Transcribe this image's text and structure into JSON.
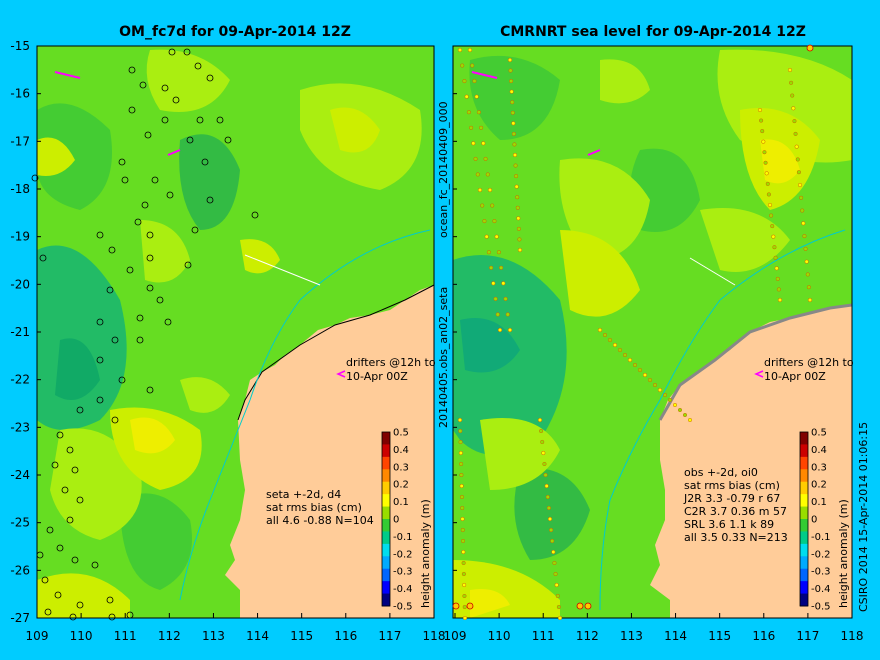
{
  "titles": {
    "left": "OM_fc7d for 09-Apr-2014 12Z",
    "right": "CMRNRT sea level  for 09-Apr-2014 12Z"
  },
  "axes": {
    "lat_ticks": [
      "-15",
      "-16",
      "-17",
      "-18",
      "-19",
      "-20",
      "-21",
      "-22",
      "-23",
      "-24",
      "-25",
      "-26",
      "-27"
    ],
    "lon_ticks": [
      "109",
      "110",
      "111",
      "112",
      "113",
      "114",
      "115",
      "116",
      "117",
      "118"
    ]
  },
  "side_labels": {
    "middle_top": "ocean_fc_20140409_000",
    "middle_bottom": "20140405.obs_an02_seta",
    "right_copyright": "CSIRO 2014   15-Apr-2014 01:06:15"
  },
  "drifters_note": {
    "line1": "drifters @12h to",
    "line2": "10-Apr 00Z"
  },
  "left_stats": {
    "line1": "seta +-2d, d4",
    "line2": "sat rms bias (cm)",
    "line3": "all 4.6 -0.88 N=104"
  },
  "right_stats": {
    "line1": "obs +-2d, oi0",
    "line2": "sat rms bias (cm)",
    "rows": [
      "J2R   3.3 -0.79 r 67",
      "C2R   3.7 0.36 m 57",
      "SRL   3.6 1.1 k 89",
      "all   3.5 0.33 N=213"
    ]
  },
  "colorbar": {
    "label": "height anomaly (m)",
    "ticks": [
      "0.5",
      "0.4",
      "0.3",
      "0.2",
      "0.1",
      "0",
      "-0.1",
      "-0.2",
      "-0.3",
      "-0.4",
      "-0.5"
    ],
    "colors": [
      "#000080",
      "#0000ff",
      "#0066ff",
      "#00aaff",
      "#00ddee",
      "#00cc88",
      "#33cc33",
      "#99dd00",
      "#ffff00",
      "#ffcc00",
      "#ff8800",
      "#ff4400",
      "#cc0000",
      "#800000"
    ]
  },
  "colors": {
    "land": "#ffcc99",
    "background": "#00ccff",
    "sea_green": "#55dd22",
    "sea_bright": "#aaee11",
    "sea_yellow": "#ddee00",
    "sea_teal": "#22cc66",
    "drifter": "#ff00ff"
  }
}
